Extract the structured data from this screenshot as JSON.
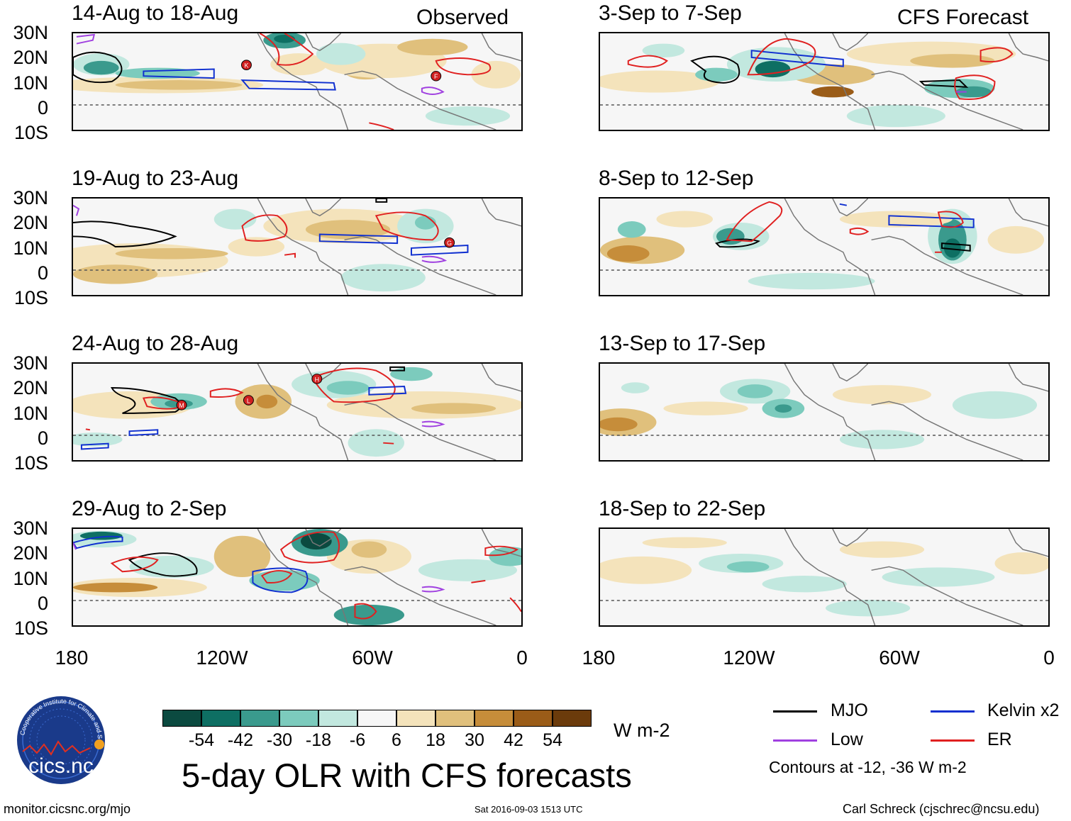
{
  "panel_titles": {
    "p1": "14-Aug to 18-Aug",
    "p2": "19-Aug to 23-Aug",
    "p3": "24-Aug to 28-Aug",
    "p4": "29-Aug to 2-Sep",
    "p5": "3-Sep to 7-Sep",
    "p6": "8-Sep to 12-Sep",
    "p7": "13-Sep to 17-Sep",
    "p8": "18-Sep to 22-Sep"
  },
  "column_labels": {
    "observed": "Observed",
    "forecast": "CFS Forecast"
  },
  "lat_labels": [
    "30N",
    "20N",
    "10N",
    "0",
    "10S"
  ],
  "lon_labels": [
    "180",
    "120W",
    "60W",
    "0"
  ],
  "storm_markers": [
    "K",
    "F",
    "G",
    "M",
    "L",
    "H"
  ],
  "colorbar": {
    "colors": [
      "#0b4a40",
      "#0e6f63",
      "#3a9a8d",
      "#7ccbbd",
      "#c2e8df",
      "#f6f6f6",
      "#f4e3bb",
      "#e0c07c",
      "#c68d3a",
      "#9a5c18",
      "#6b3b0b"
    ],
    "labels": [
      "-54",
      "-42",
      "-30",
      "-18",
      "-6",
      "6",
      "18",
      "30",
      "42",
      "54"
    ],
    "units": "W m-2"
  },
  "main_title": "5-day OLR with CFS forecasts",
  "legend": {
    "items": [
      {
        "label": "MJO",
        "color": "#000000"
      },
      {
        "label": "Kelvin x2",
        "color": "#1030d0"
      },
      {
        "label": "Low",
        "color": "#a040e0"
      },
      {
        "label": "ER",
        "color": "#e02020"
      }
    ],
    "note": "Contours at -12, -36 W m-2"
  },
  "logo": {
    "text": "cics.nc",
    "ring_text": "Cooperative Institute for Climate and Satellites"
  },
  "footer": {
    "left": "monitor.cicsnc.org/mjo",
    "center": "Sat 2016-09-03 1513 UTC",
    "right": "Carl Schreck (cjschrec@ncsu.edu)"
  }
}
